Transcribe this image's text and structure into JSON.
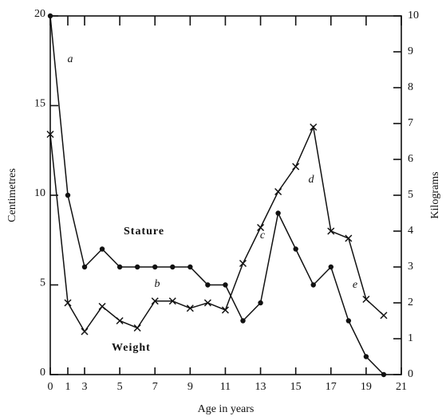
{
  "chart_data": {
    "type": "line",
    "x_label": "Age in years",
    "y_label": "Centimetres",
    "y2_label": "Kilograms",
    "x": [
      0,
      1,
      3,
      4,
      5,
      6,
      7,
      8,
      9,
      10,
      11,
      12,
      13,
      14,
      15,
      16,
      17,
      18,
      19,
      20
    ],
    "xlim": [
      0,
      21
    ],
    "xticks": [
      0,
      1,
      3,
      5,
      7,
      9,
      11,
      13,
      15,
      17,
      19,
      21
    ],
    "ylim": [
      0,
      20
    ],
    "yticks": [
      0,
      5,
      10,
      15,
      20
    ],
    "y2lim": [
      0,
      10
    ],
    "y2ticks": [
      0,
      1,
      2,
      3,
      4,
      5,
      6,
      7,
      8,
      9,
      10
    ],
    "series": [
      {
        "name": "Stature",
        "color": "#111111",
        "marker": "o",
        "values": [
          20,
          10,
          6,
          7,
          6,
          6,
          6,
          6,
          6,
          5,
          5,
          3,
          4,
          9,
          7,
          5,
          6,
          3,
          1,
          0
        ]
      },
      {
        "name": "Weight",
        "color": "#111111",
        "marker": "x",
        "axis": "y2",
        "values": [
          6.7,
          2.0,
          1.2,
          1.9,
          1.5,
          1.3,
          2.05,
          2.05,
          1.85,
          2.0,
          1.8,
          3.1,
          4.1,
          5.1,
          5.8,
          6.9,
          4.0,
          3.8,
          2.1,
          1.65
        ]
      }
    ],
    "annotations": [
      "a",
      "b",
      "c",
      "d",
      "e"
    ]
  }
}
